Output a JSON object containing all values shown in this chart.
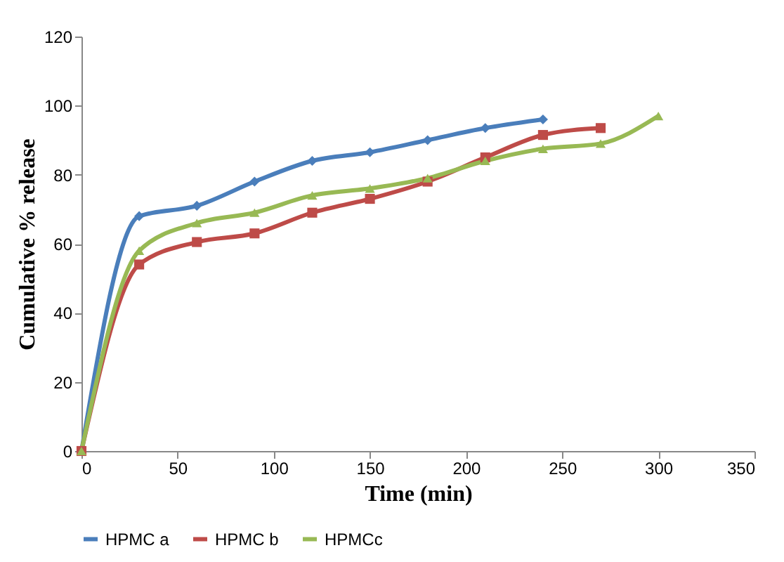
{
  "chart_data": {
    "type": "line",
    "xlabel": "Time (min)",
    "ylabel": "Cumulative % release",
    "xlim": [
      0,
      350
    ],
    "xticks": [
      0,
      50,
      100,
      150,
      200,
      250,
      300,
      350
    ],
    "ylim": [
      0,
      120
    ],
    "yticks": [
      0,
      20,
      40,
      60,
      80,
      100,
      120
    ],
    "grid": false,
    "legend": "bottom",
    "series": [
      {
        "name": "HPMC a",
        "color": "#4a7ebb",
        "marker": "diamond",
        "x": [
          0,
          30,
          60,
          90,
          120,
          150,
          180,
          210,
          240
        ],
        "values": [
          0,
          68,
          71,
          78,
          84,
          86.5,
          90,
          93.5,
          96
        ]
      },
      {
        "name": "HPMC b",
        "color": "#be4b48",
        "marker": "square",
        "x": [
          0,
          30,
          60,
          90,
          120,
          150,
          180,
          210,
          240,
          270
        ],
        "values": [
          0,
          54,
          60.5,
          63,
          69,
          73,
          78,
          85,
          91.5,
          93.5
        ]
      },
      {
        "name": "HPMCc",
        "color": "#98b954",
        "marker": "triangle",
        "x": [
          0,
          30,
          60,
          90,
          120,
          150,
          180,
          210,
          240,
          270,
          300
        ],
        "values": [
          0,
          58,
          66,
          69,
          74,
          76,
          79,
          84,
          87.5,
          89,
          97
        ]
      }
    ]
  }
}
